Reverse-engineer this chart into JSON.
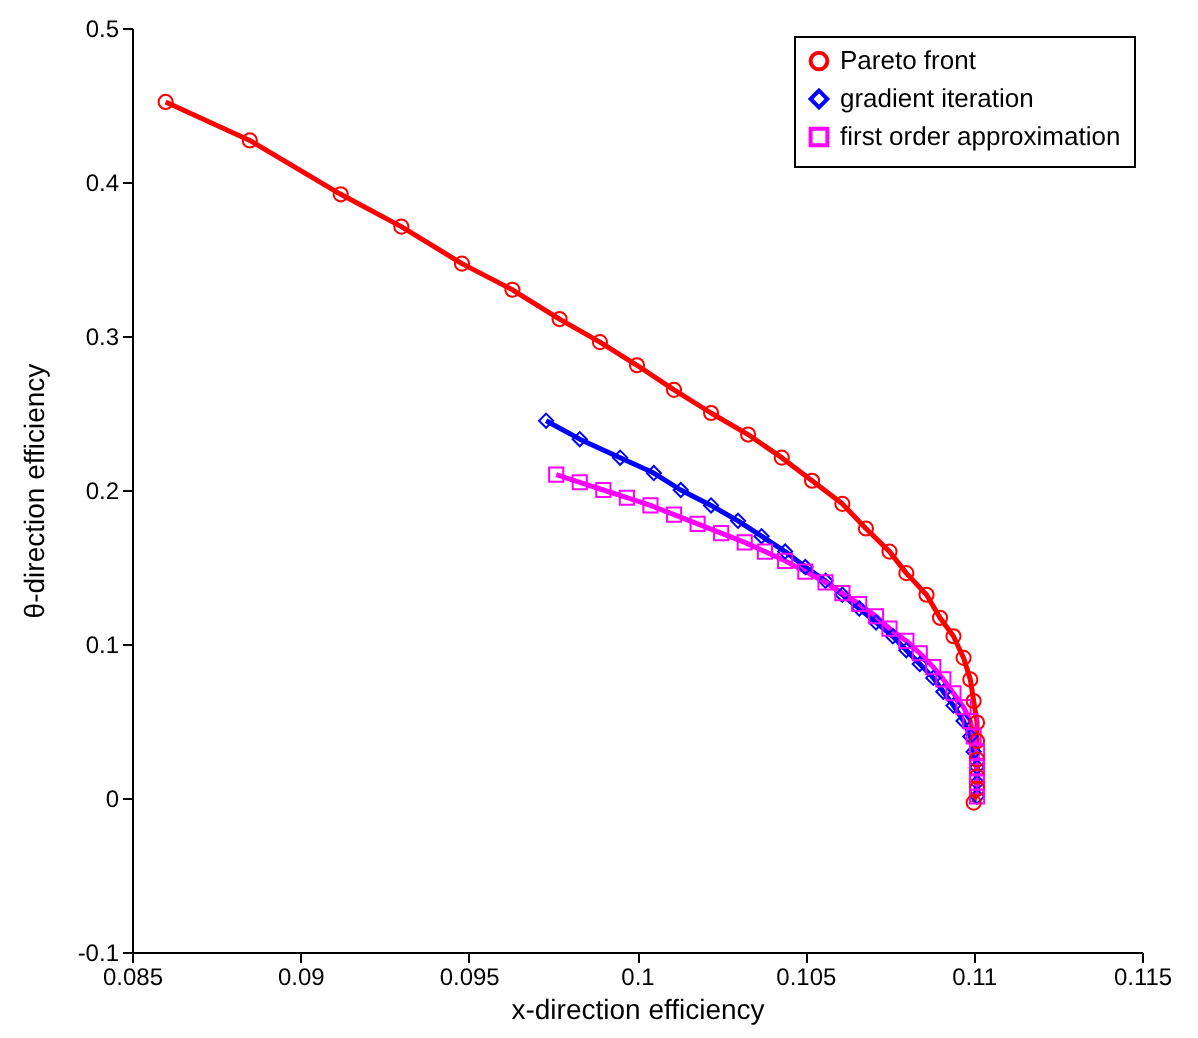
{
  "chart_data": {
    "type": "line",
    "xlabel": "x-direction efficiency",
    "ylabel": "θ-direction efficiency",
    "xlim": [
      0.085,
      0.115
    ],
    "xticks": [
      0.085,
      0.09,
      0.095,
      0.1,
      0.105,
      0.11,
      0.115
    ],
    "ylim": [
      -0.1,
      0.5
    ],
    "yticks": [
      -0.1,
      0,
      0.1,
      0.2,
      0.3,
      0.4,
      0.5
    ],
    "grid": false,
    "legend": "top right",
    "line_style": "solid",
    "series": [
      {
        "name": "Pareto front",
        "color": "#ff0000",
        "marker": "circle",
        "x": [
          0.086,
          0.0885,
          0.0912,
          0.093,
          0.0948,
          0.0963,
          0.0977,
          0.0989,
          0.1,
          0.1011,
          0.1022,
          0.1033,
          0.1043,
          0.1052,
          0.1061,
          0.1068,
          0.1075,
          0.108,
          0.1086,
          0.109,
          0.1094,
          0.1097,
          0.1099,
          0.11,
          0.1101,
          0.1101,
          0.1101,
          0.1101,
          0.1101,
          0.11
        ],
        "values": [
          0.452,
          0.427,
          0.392,
          0.371,
          0.347,
          0.33,
          0.311,
          0.296,
          0.281,
          0.265,
          0.25,
          0.236,
          0.221,
          0.206,
          0.191,
          0.175,
          0.16,
          0.146,
          0.132,
          0.117,
          0.105,
          0.091,
          0.077,
          0.063,
          0.049,
          0.037,
          0.025,
          0.014,
          0.006,
          -0.003
        ]
      },
      {
        "name": "gradient iteration",
        "color": "#0000ff",
        "marker": "diamond",
        "x": [
          0.0973,
          0.0983,
          0.0995,
          0.1005,
          0.1013,
          0.1022,
          0.103,
          0.1037,
          0.1044,
          0.105,
          0.1056,
          0.1061,
          0.1066,
          0.1071,
          0.1076,
          0.108,
          0.1084,
          0.1088,
          0.1091,
          0.1094,
          0.1097,
          0.1099,
          0.11,
          0.1101,
          0.1101,
          0.1101
        ],
        "values": [
          0.245,
          0.233,
          0.221,
          0.211,
          0.2,
          0.19,
          0.18,
          0.17,
          0.16,
          0.15,
          0.141,
          0.132,
          0.123,
          0.114,
          0.105,
          0.096,
          0.087,
          0.078,
          0.069,
          0.06,
          0.05,
          0.04,
          0.03,
          0.02,
          0.01,
          0.001
        ]
      },
      {
        "name": "first order approximation",
        "color": "#ff00ff",
        "marker": "square",
        "x": [
          0.0976,
          0.0983,
          0.099,
          0.0997,
          0.1004,
          0.1011,
          0.1018,
          0.1025,
          0.1032,
          0.1038,
          0.1044,
          0.105,
          0.1056,
          0.1061,
          0.1066,
          0.1071,
          0.1075,
          0.108,
          0.1084,
          0.1088,
          0.1091,
          0.1094,
          0.1097,
          0.1099,
          0.11,
          0.1101,
          0.1101,
          0.1101,
          0.1101
        ],
        "values": [
          0.21,
          0.205,
          0.2,
          0.195,
          0.19,
          0.184,
          0.178,
          0.172,
          0.166,
          0.16,
          0.154,
          0.147,
          0.14,
          0.133,
          0.126,
          0.118,
          0.11,
          0.102,
          0.094,
          0.085,
          0.077,
          0.068,
          0.059,
          0.05,
          0.04,
          0.03,
          0.02,
          0.01,
          0.001
        ]
      }
    ]
  }
}
